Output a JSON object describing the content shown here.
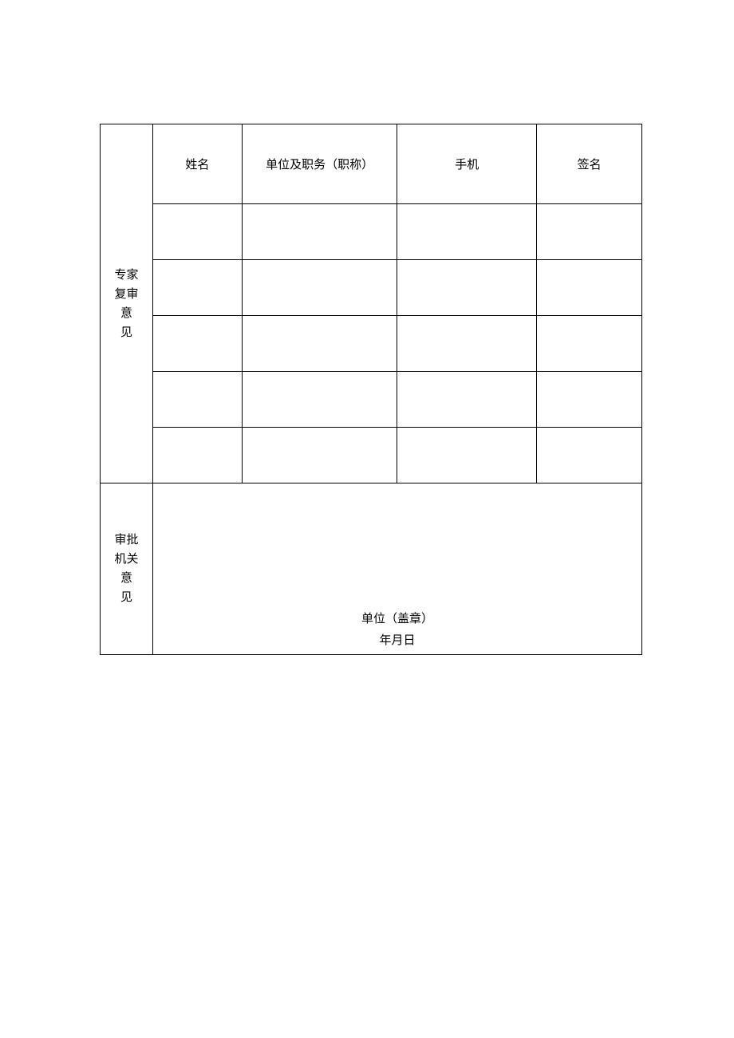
{
  "table": {
    "expert_review": {
      "label_line1": "专家",
      "label_line2": "复审",
      "label_line3": "意",
      "label_line4": "见",
      "headers": {
        "name": "姓名",
        "organization": "单位及职务（职称）",
        "phone": "手机",
        "signature": "签名"
      },
      "rows": [
        {
          "name": "",
          "organization": "",
          "phone": "",
          "signature": ""
        },
        {
          "name": "",
          "organization": "",
          "phone": "",
          "signature": ""
        },
        {
          "name": "",
          "organization": "",
          "phone": "",
          "signature": ""
        },
        {
          "name": "",
          "organization": "",
          "phone": "",
          "signature": ""
        },
        {
          "name": "",
          "organization": "",
          "phone": "",
          "signature": ""
        }
      ]
    },
    "approval": {
      "label_line1": "审批",
      "label_line2": "机关",
      "label_line3": "意",
      "label_line4": "见",
      "stamp_text": "单位（盖章）",
      "date_text": "年月日"
    }
  },
  "styling": {
    "border_color": "#000000",
    "background_color": "#ffffff",
    "text_color": "#000000",
    "font_size": 15,
    "col_widths": {
      "label": 66,
      "name": 112,
      "org": 195,
      "phone": 175,
      "sign": 132
    },
    "header_row_height": 100,
    "data_row_height": 70,
    "approval_row_height": 215
  }
}
